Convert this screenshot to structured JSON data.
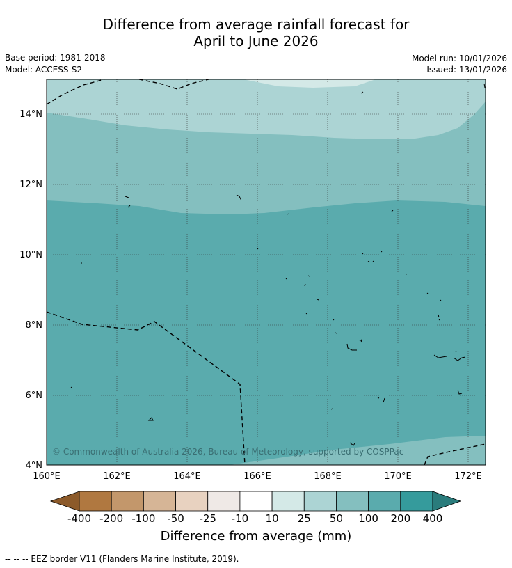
{
  "title": {
    "line1": "Difference from average rainfall forecast for",
    "line2": "April to June 2026"
  },
  "meta": {
    "base_period": "Base period: 1981-2018",
    "model": "Model: ACCESS-S2",
    "model_run": "Model run: 10/01/2026",
    "issued": "Issued: 13/01/2026"
  },
  "map": {
    "lat_labels": [
      "14°N",
      "12°N",
      "10°N",
      "8°N",
      "6°N",
      "4°N"
    ],
    "lon_labels": [
      "160°E",
      "162°E",
      "164°E",
      "166°E",
      "168°E",
      "170°E",
      "172°E"
    ],
    "lat_range": [
      4,
      15
    ],
    "lon_range": [
      160,
      172.5
    ],
    "copyright": "© Commonwealth of Australia 2026, Bureau of Meteorology, supported by COSPPac"
  },
  "colorbar": {
    "labels": [
      "-400",
      "-200",
      "-100",
      "-50",
      "-25",
      "-10",
      "10",
      "25",
      "50",
      "100",
      "200",
      "400"
    ],
    "colors": [
      "#8c5a2a",
      "#b07840",
      "#c3976b",
      "#d6b596",
      "#e8d2c0",
      "#efe9e6",
      "#ffffff",
      "#d4e9e7",
      "#acd4d4",
      "#84bfbf",
      "#5aabad",
      "#359b9c",
      "#2a7c7c"
    ],
    "title": "Difference from average (mm)"
  },
  "footnote": "--  --  -- EEZ border V11 (Flanders Marine Institute, 2019)."
}
